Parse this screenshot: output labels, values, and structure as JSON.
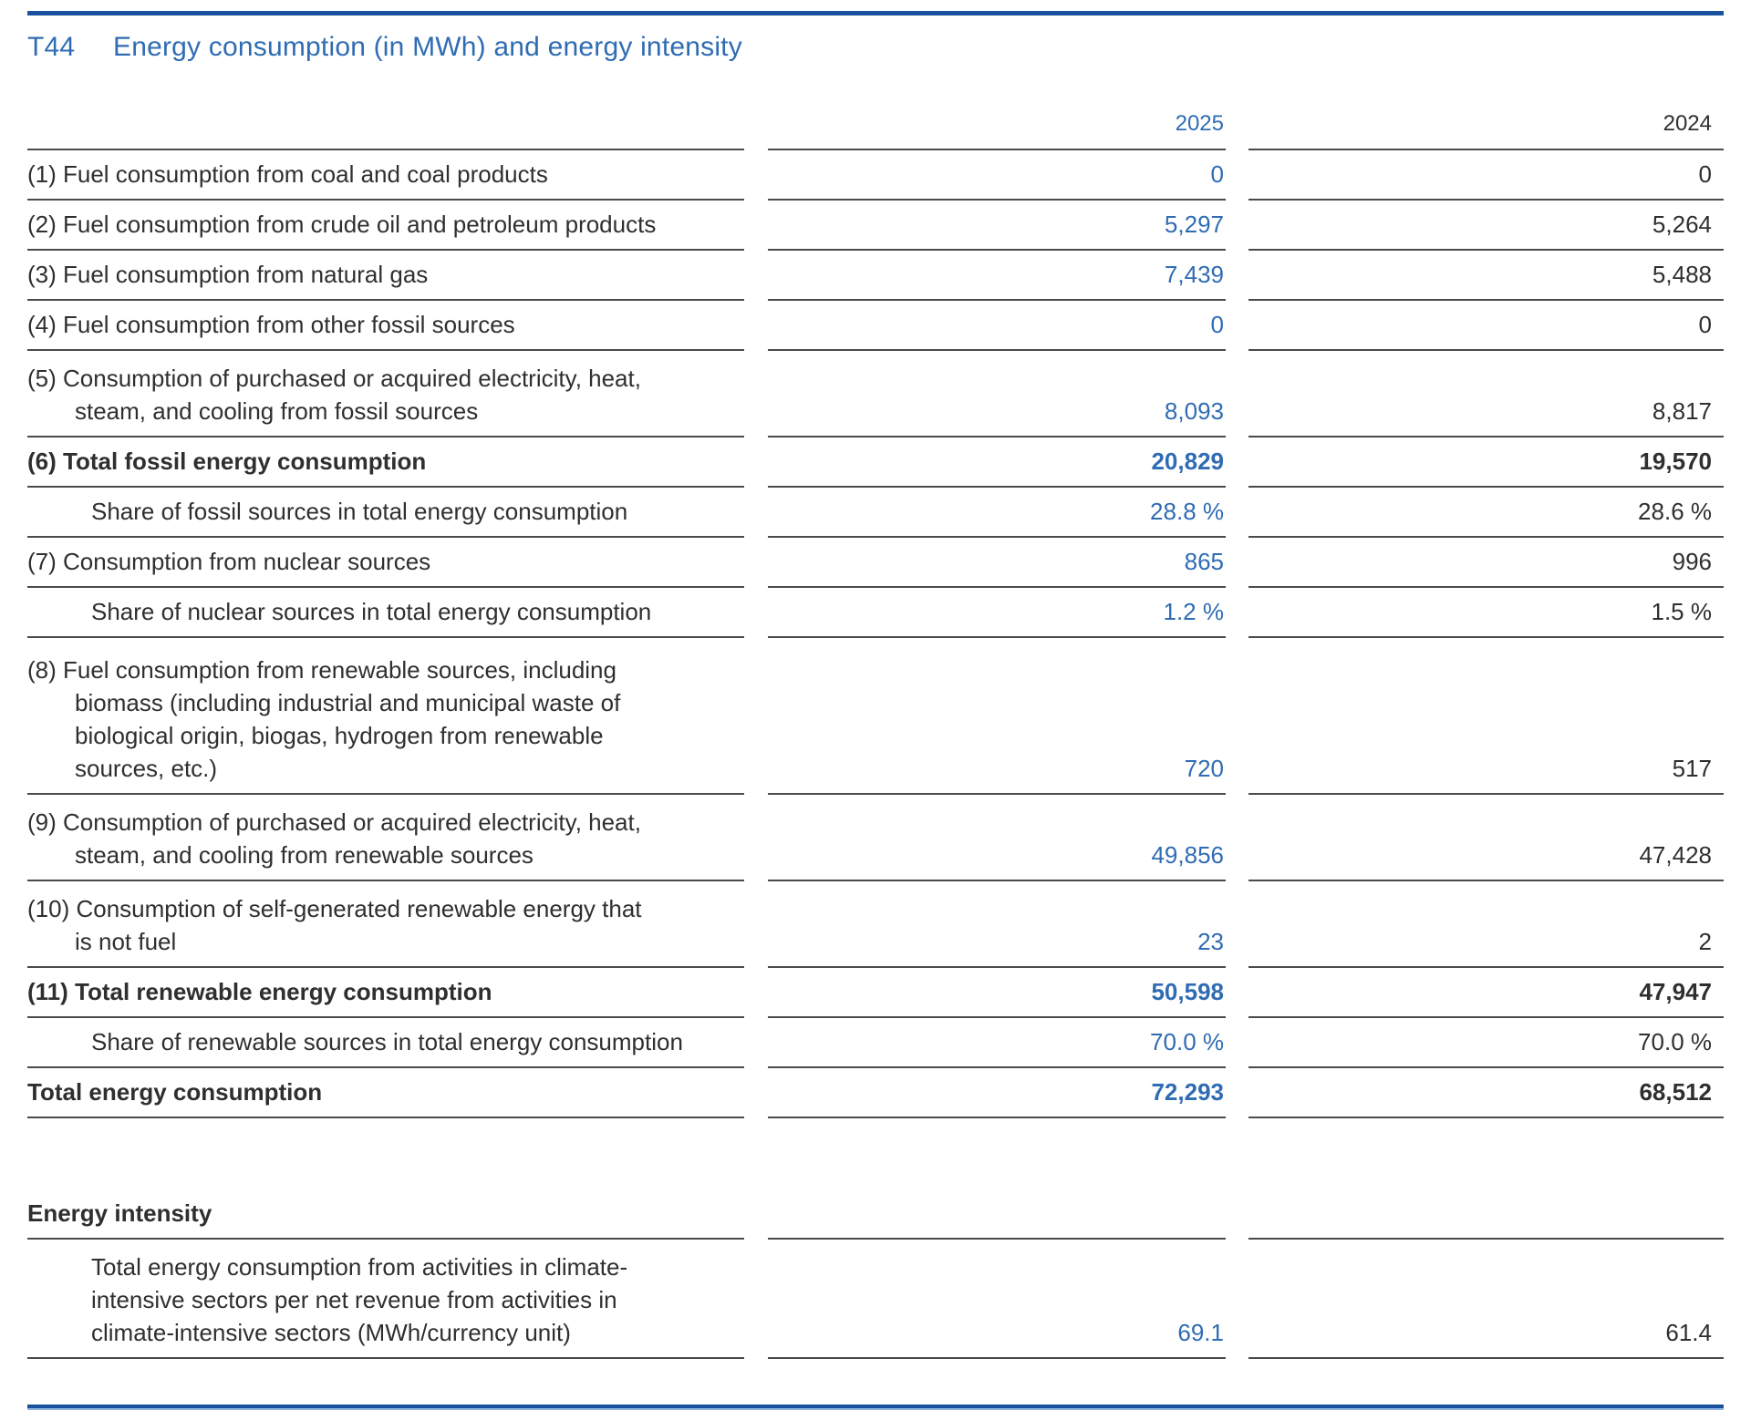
{
  "header": {
    "table_id": "T44",
    "title": "Energy consumption (in MWh) and energy intensity"
  },
  "columns": {
    "current_year": "2025",
    "prior_year": "2024"
  },
  "colors": {
    "accent_blue": "#2f6cb3",
    "rule_dark_blue": "#1a529e",
    "rule_light_blue": "#8ab4dc",
    "row_rule_gray": "#4a4a4a",
    "text_dark": "#2f2f2f"
  },
  "rows": [
    {
      "label": "(1) Fuel consumption from coal and coal products",
      "v2025": "0",
      "v2024": "0"
    },
    {
      "label": "(2) Fuel consumption from crude oil and petroleum products",
      "v2025": "5,297",
      "v2024": "5,264"
    },
    {
      "label": "(3) Fuel consumption from natural gas",
      "v2025": "7,439",
      "v2024": "5,488"
    },
    {
      "label": "(4) Fuel consumption from other fossil sources",
      "v2025": "0",
      "v2024": "0"
    },
    {
      "label": "(5) Consumption of purchased or acquired electricity, heat,\nsteam, and cooling from fossil sources",
      "v2025": "8,093",
      "v2024": "8,817"
    },
    {
      "label": "(6) Total fossil energy consumption",
      "v2025": "20,829",
      "v2024": "19,570"
    },
    {
      "label": "Share of fossil sources in total energy consumption",
      "v2025": "28.8 %",
      "v2024": "28.6 %"
    },
    {
      "label": "(7) Consumption from nuclear sources",
      "v2025": "865",
      "v2024": "996"
    },
    {
      "label": "Share of nuclear sources in total energy consumption",
      "v2025": "1.2 %",
      "v2024": "1.5 %"
    },
    {
      "label": "(8) Fuel consumption from renewable sources, including\nbiomass (including industrial and municipal waste of\nbiological origin, biogas, hydrogen from renewable\nsources, etc.)",
      "v2025": "720",
      "v2024": "517"
    },
    {
      "label": "(9) Consumption of purchased or acquired electricity, heat,\nsteam, and cooling from renewable sources",
      "v2025": "49,856",
      "v2024": "47,428"
    },
    {
      "label": "(10) Consumption of self-generated renewable energy that\nis not fuel",
      "v2025": "23",
      "v2024": "2"
    },
    {
      "label": "(11) Total renewable energy consumption",
      "v2025": "50,598",
      "v2024": "47,947"
    },
    {
      "label": "Share of renewable sources in total energy consumption",
      "v2025": "70.0 %",
      "v2024": "70.0 %"
    },
    {
      "label": "Total energy consumption",
      "v2025": "72,293",
      "v2024": "68,512"
    }
  ],
  "energy_intensity": {
    "section_label": "Energy intensity",
    "row": {
      "label": "Total energy consumption from activities in climate-\nintensive sectors per net revenue from activities in\nclimate-intensive sectors (MWh/currency unit)",
      "v2025": "69.1",
      "v2024": "61.4"
    }
  }
}
